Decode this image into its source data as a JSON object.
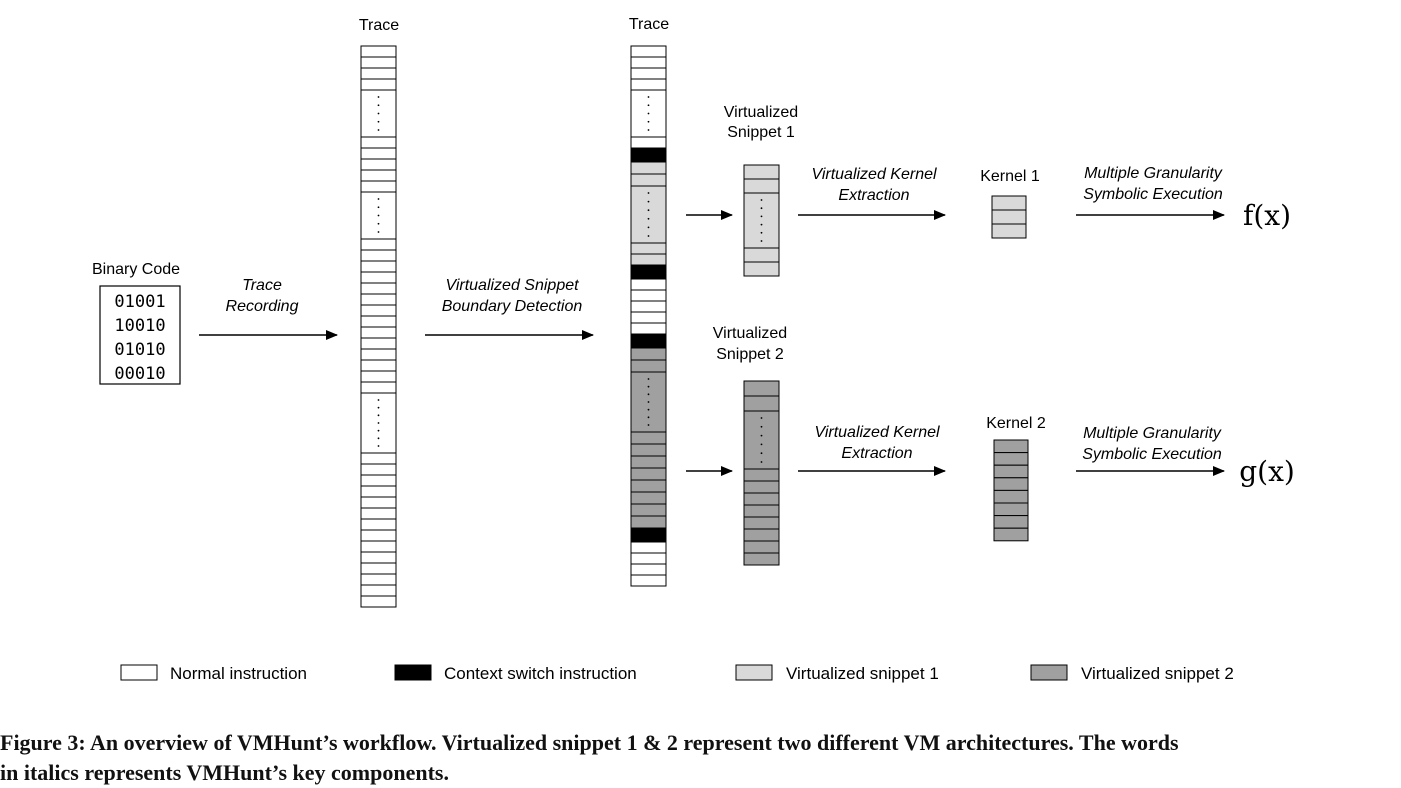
{
  "trace1": {
    "title": "Trace"
  },
  "trace2": {
    "title": "Trace"
  },
  "binary": {
    "title": "Binary Code",
    "lines": [
      "01001",
      "10010",
      "01010",
      "00010"
    ]
  },
  "steps": {
    "trace_recording": [
      "Trace",
      "Recording"
    ],
    "boundary_detection": [
      "Virtualized Snippet",
      "Boundary Detection"
    ],
    "kernel_extraction_1": [
      "Virtualized Kernel",
      "Extraction"
    ],
    "kernel_extraction_2": [
      "Virtualized Kernel",
      "Extraction"
    ],
    "symbolic_1": [
      "Multiple Granularity",
      "Symbolic Execution"
    ],
    "symbolic_2": [
      "Multiple Granularity",
      "Symbolic Execution"
    ]
  },
  "snippet1": {
    "title": [
      "Virtualized",
      "Snippet 1"
    ]
  },
  "snippet2": {
    "title": [
      "Virtualized",
      "Snippet 2"
    ]
  },
  "kernel1": {
    "title": "Kernel 1"
  },
  "kernel2": {
    "title": "Kernel 2"
  },
  "outputs": {
    "f": "f(x)",
    "g": "g(x)"
  },
  "legend": [
    {
      "label": "Normal instruction",
      "color": "#ffffff"
    },
    {
      "label": "Context switch instruction",
      "color": "#000000"
    },
    {
      "label": "Virtualized snippet 1",
      "color": "#d9d9d9"
    },
    {
      "label": "Virtualized snippet 2",
      "color": "#a0a0a0"
    }
  ],
  "caption": [
    "Figure 3: An overview of VMHunt’s workflow. Virtualized snippet 1 & 2 represent two different VM architectures. The words",
    "in italics represents VMHunt’s key components."
  ]
}
